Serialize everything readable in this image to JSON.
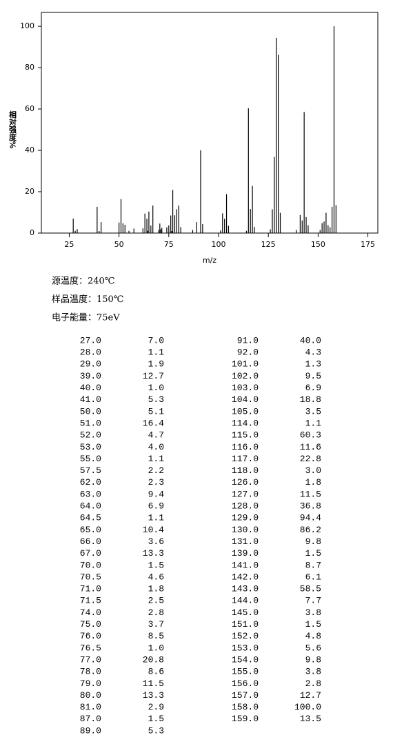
{
  "chart_data": {
    "type": "bar",
    "xlabel": "m/z",
    "ylabel": "相对强度%",
    "color": "#000000",
    "x": [
      27,
      28,
      29,
      39,
      40,
      41,
      50,
      51,
      52,
      53,
      55,
      57.5,
      62,
      63,
      64,
      64.5,
      65,
      66,
      67,
      70,
      70.5,
      71,
      71.5,
      74,
      75,
      76,
      76.5,
      77,
      78,
      79,
      80,
      81,
      87,
      89,
      91,
      92,
      101,
      102,
      103,
      104,
      105,
      114,
      115,
      116,
      117,
      118,
      126,
      127,
      128,
      129,
      130,
      131,
      139,
      141,
      142,
      143,
      144,
      145,
      151,
      152,
      153,
      154,
      155,
      156,
      157,
      158,
      159
    ],
    "values": [
      7.0,
      1.1,
      1.9,
      12.7,
      1.0,
      5.3,
      5.1,
      16.4,
      4.7,
      4.0,
      1.1,
      2.2,
      2.3,
      9.4,
      6.9,
      1.1,
      10.4,
      3.6,
      13.3,
      1.5,
      4.6,
      1.8,
      2.5,
      2.8,
      3.7,
      8.5,
      1.0,
      20.8,
      8.6,
      11.5,
      13.3,
      2.9,
      1.5,
      5.3,
      40.0,
      4.3,
      1.3,
      9.5,
      6.9,
      18.8,
      3.5,
      1.1,
      60.3,
      11.6,
      22.8,
      3.0,
      1.8,
      11.5,
      36.8,
      94.4,
      86.2,
      9.8,
      1.5,
      8.7,
      6.1,
      58.5,
      7.7,
      3.8,
      1.5,
      4.8,
      5.6,
      9.8,
      3.8,
      2.8,
      12.7,
      100,
      13.5
    ],
    "xlim": [
      11,
      180
    ],
    "xticks": [
      25,
      50,
      75,
      100,
      125,
      150,
      175
    ],
    "ylim": [
      0,
      106.7
    ],
    "yticks": [
      0,
      20,
      40,
      60,
      80,
      100
    ]
  },
  "info": [
    "源温度：240℃",
    "样品温度：150℃",
    "电子能量：75eV"
  ],
  "table": {
    "rows": [
      [
        "27.0",
        "7.0"
      ],
      [
        "28.0",
        "1.1"
      ],
      [
        "29.0",
        "1.9"
      ],
      [
        "39.0",
        "12.7"
      ],
      [
        "40.0",
        "1.0"
      ],
      [
        "41.0",
        "5.3"
      ],
      [
        "50.0",
        "5.1"
      ],
      [
        "51.0",
        "16.4"
      ],
      [
        "52.0",
        "4.7"
      ],
      [
        "53.0",
        "4.0"
      ],
      [
        "55.0",
        "1.1"
      ],
      [
        "57.5",
        "2.2"
      ],
      [
        "62.0",
        "2.3"
      ],
      [
        "63.0",
        "9.4"
      ],
      [
        "64.0",
        "6.9"
      ],
      [
        "64.5",
        "1.1"
      ],
      [
        "65.0",
        "10.4"
      ],
      [
        "66.0",
        "3.6"
      ],
      [
        "67.0",
        "13.3"
      ],
      [
        "70.0",
        "1.5"
      ],
      [
        "70.5",
        "4.6"
      ],
      [
        "71.0",
        "1.8"
      ],
      [
        "71.5",
        "2.5"
      ],
      [
        "74.0",
        "2.8"
      ],
      [
        "75.0",
        "3.7"
      ],
      [
        "76.0",
        "8.5"
      ],
      [
        "76.5",
        "1.0"
      ],
      [
        "77.0",
        "20.8"
      ],
      [
        "78.0",
        "8.6"
      ],
      [
        "79.0",
        "11.5"
      ],
      [
        "80.0",
        "13.3"
      ],
      [
        "81.0",
        "2.9"
      ],
      [
        "87.0",
        "1.5"
      ],
      [
        "89.0",
        "5.3"
      ],
      [
        "91.0",
        "40.0"
      ],
      [
        "92.0",
        "4.3"
      ],
      [
        "101.0",
        "1.3"
      ],
      [
        "102.0",
        "9.5"
      ],
      [
        "103.0",
        "6.9"
      ],
      [
        "104.0",
        "18.8"
      ],
      [
        "105.0",
        "3.5"
      ],
      [
        "114.0",
        "1.1"
      ],
      [
        "115.0",
        "60.3"
      ],
      [
        "116.0",
        "11.6"
      ],
      [
        "117.0",
        "22.8"
      ],
      [
        "118.0",
        "3.0"
      ],
      [
        "126.0",
        "1.8"
      ],
      [
        "127.0",
        "11.5"
      ],
      [
        "128.0",
        "36.8"
      ],
      [
        "129.0",
        "94.4"
      ],
      [
        "130.0",
        "86.2"
      ],
      [
        "131.0",
        "9.8"
      ],
      [
        "139.0",
        "1.5"
      ],
      [
        "141.0",
        "8.7"
      ],
      [
        "142.0",
        "6.1"
      ],
      [
        "143.0",
        "58.5"
      ],
      [
        "144.0",
        "7.7"
      ],
      [
        "145.0",
        "3.8"
      ],
      [
        "151.0",
        "1.5"
      ],
      [
        "152.0",
        "4.8"
      ],
      [
        "153.0",
        "5.6"
      ],
      [
        "154.0",
        "9.8"
      ],
      [
        "155.0",
        "3.8"
      ],
      [
        "156.0",
        "2.8"
      ],
      [
        "157.0",
        "12.7"
      ],
      [
        "158.0",
        "100.0"
      ],
      [
        "159.0",
        "13.5"
      ]
    ]
  }
}
